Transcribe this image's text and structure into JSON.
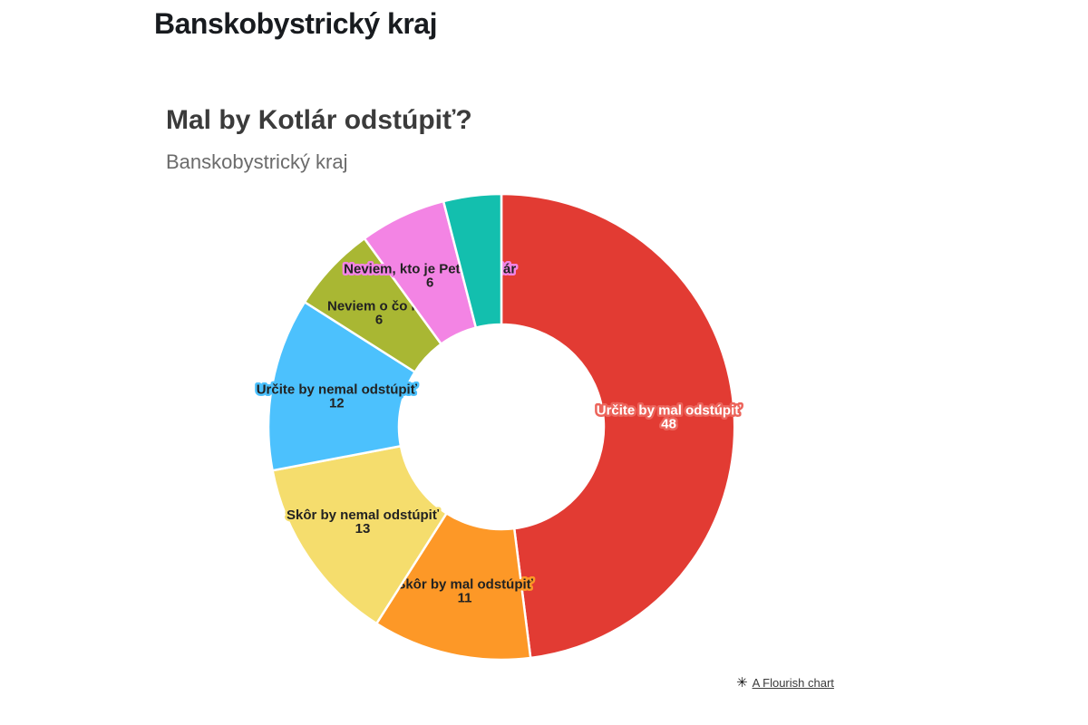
{
  "header": {
    "region": "Banskobystrický kraj"
  },
  "chart": {
    "title": "Mal by Kotlár odstúpiť?",
    "subtitle": "Banskobystrický kraj"
  },
  "attribution": {
    "icon": "flourish-starburst-icon",
    "icon_glyph": "✳",
    "label": "A Flourish chart"
  },
  "chart_data": {
    "type": "pie",
    "subtype": "donut",
    "title": "Mal by Kotlár odstúpiť?",
    "subtitle": "Banskobystrický kraj",
    "start_angle_deg": 0,
    "direction": "clockwise",
    "inner_radius_ratio": 0.44,
    "legend": "none",
    "slices": [
      {
        "label": "Určite by mal odstúpiť",
        "value": 48,
        "color": "#e23b33",
        "text_color": "#ffffff",
        "halo_color": "#ec635a",
        "show_label": true
      },
      {
        "label": "Skôr by mal odstúpiť",
        "value": 11,
        "color": "#fd9827",
        "text_color": "#222222",
        "halo_color": "#fd9827",
        "show_label": true
      },
      {
        "label": "Skôr by nemal odstúpiť",
        "value": 13,
        "color": "#f5dd6d",
        "text_color": "#222222",
        "halo_color": "#f5dd6d",
        "show_label": true
      },
      {
        "label": "Určite by nemal odstúpiť",
        "value": 12,
        "color": "#4cc1fd",
        "text_color": "#222222",
        "halo_color": "#4cc1fd",
        "show_label": true
      },
      {
        "label": "Neviem o čo ide",
        "value": 6,
        "color": "#a9b733",
        "text_color": "#222222",
        "halo_color": "#a9b733",
        "show_label": true
      },
      {
        "label": "Neviem, kto je Peter Kotlár",
        "value": 6,
        "color": "#f384e4",
        "text_color": "#222222",
        "halo_color": "#f384e4",
        "show_label": true
      },
      {
        "label": "",
        "value": 4,
        "color": "#13bfae",
        "text_color": "#222222",
        "halo_color": "#13bfae",
        "show_label": false
      }
    ]
  }
}
